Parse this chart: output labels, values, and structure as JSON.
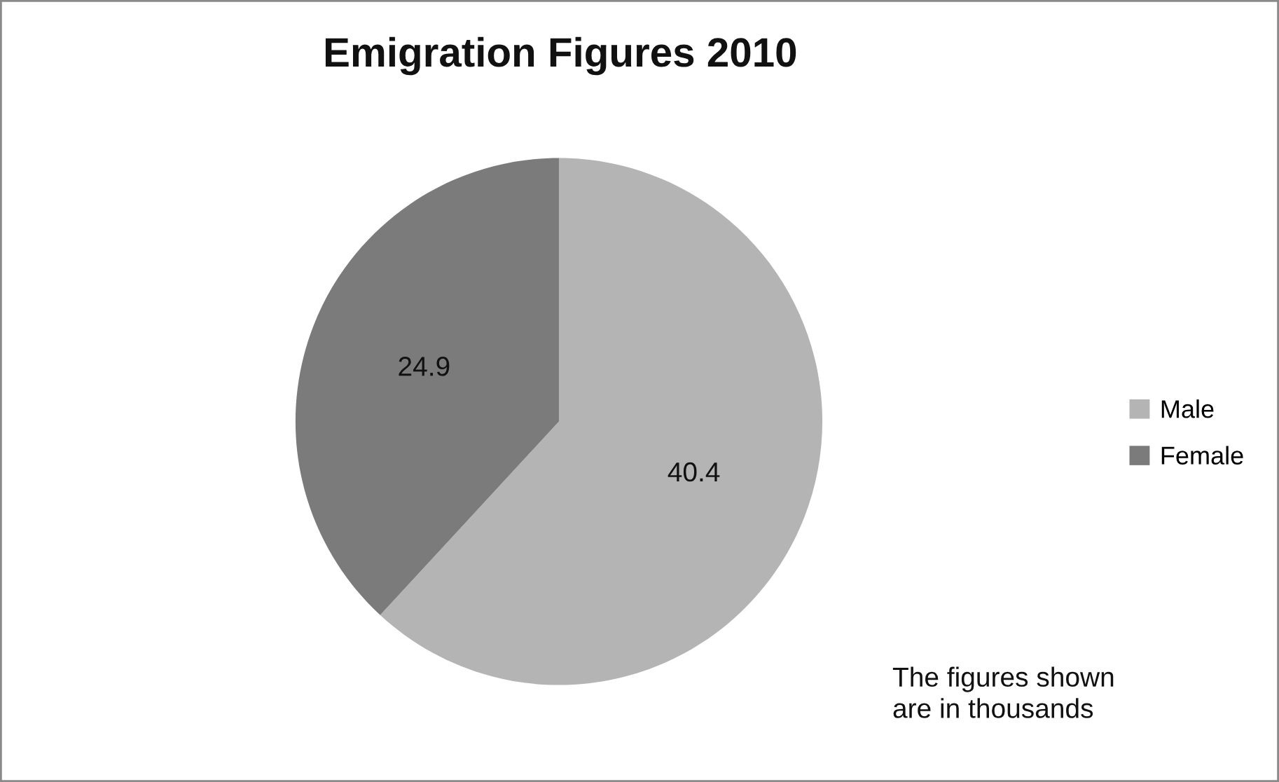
{
  "chart_data": {
    "type": "pie",
    "title": "Emigration Figures 2010",
    "categories": [
      "Male",
      "Female"
    ],
    "values": [
      40.4,
      24.9
    ],
    "colors": [
      "#b4b4b4",
      "#7b7b7b"
    ],
    "data_labels": true,
    "legend": "right",
    "annotations": [
      "The figures shown\nare in thousands"
    ]
  }
}
